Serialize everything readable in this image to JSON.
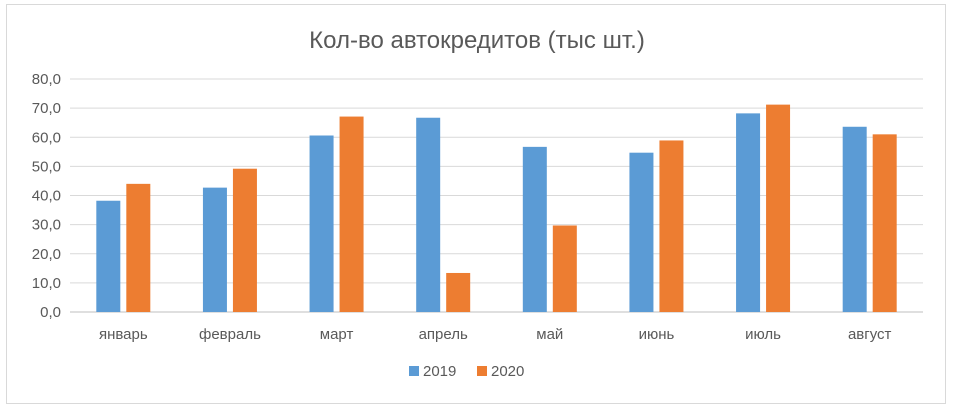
{
  "chart_data": {
    "type": "bar",
    "title": "Кол-во автокредитов (тыс шт.)",
    "xlabel": "",
    "ylabel": "",
    "categories": [
      "январь",
      "февраль",
      "март",
      "апрель",
      "май",
      "июнь",
      "июль",
      "август"
    ],
    "series": [
      {
        "name": "2019",
        "color": "#5b9bd5",
        "values": [
          38.2,
          42.7,
          60.6,
          66.7,
          56.7,
          54.7,
          68.2,
          63.6
        ]
      },
      {
        "name": "2020",
        "color": "#ed7d31",
        "values": [
          44.0,
          49.2,
          67.1,
          13.4,
          29.7,
          58.9,
          71.2,
          61.0
        ]
      }
    ],
    "ylim": [
      0,
      80
    ],
    "yticks": [
      "0,0",
      "10,0",
      "20,0",
      "30,0",
      "40,0",
      "50,0",
      "60,0",
      "70,0",
      "80,0"
    ],
    "grid": true,
    "legend_position": "bottom"
  }
}
